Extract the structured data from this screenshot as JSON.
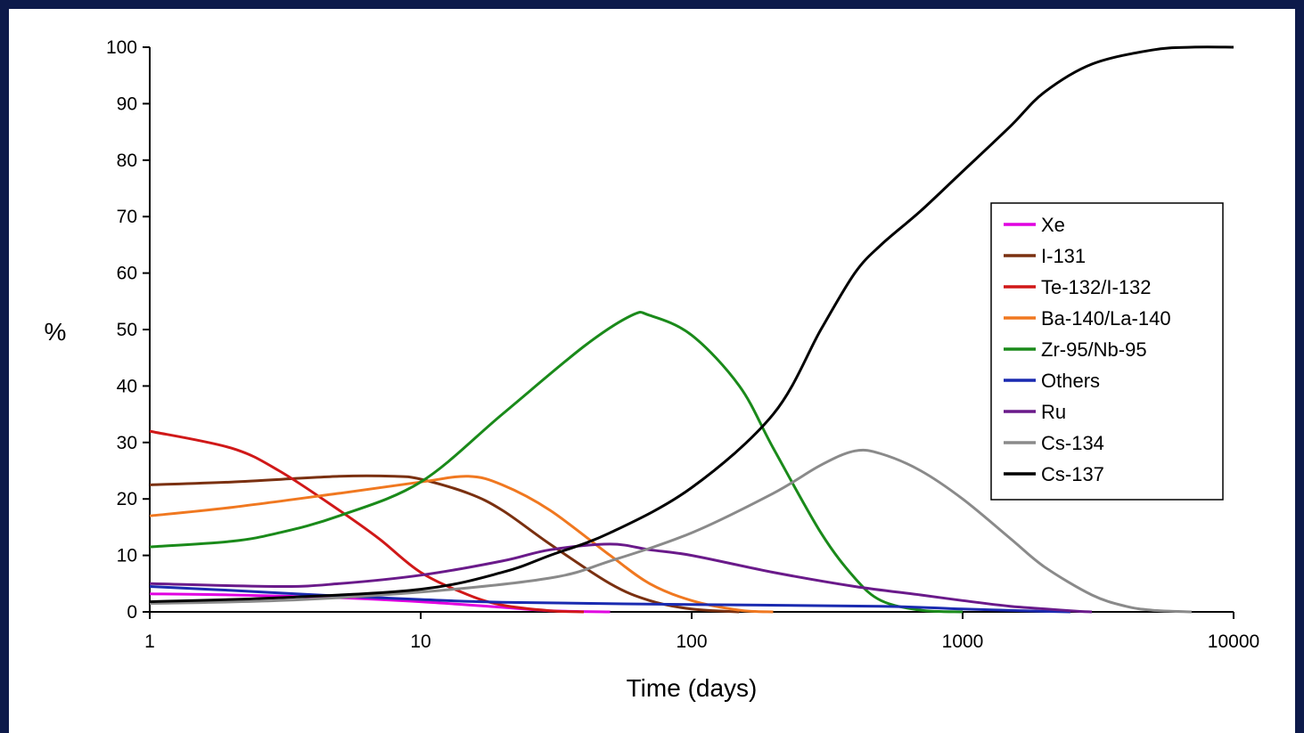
{
  "chart_data": {
    "type": "line",
    "title": "",
    "xlabel": "Time (days)",
    "ylabel": "%",
    "x_scale": "log",
    "xlim": [
      1,
      10000
    ],
    "ylim": [
      0,
      100
    ],
    "x_ticks": [
      1,
      10,
      100,
      1000,
      10000
    ],
    "x_tick_labels": [
      "1",
      "10",
      "100",
      "1000",
      "10000"
    ],
    "y_ticks": [
      0,
      10,
      20,
      30,
      40,
      50,
      60,
      70,
      80,
      90,
      100
    ],
    "y_tick_labels": [
      "0",
      "10",
      "20",
      "30",
      "40",
      "50",
      "60",
      "70",
      "80",
      "90",
      "100"
    ],
    "grid": false,
    "legend_position": "right",
    "series": [
      {
        "name": "Xe",
        "color": "#e000e0",
        "points": [
          [
            1,
            3.2
          ],
          [
            2,
            3.0
          ],
          [
            5,
            2.5
          ],
          [
            10,
            1.8
          ],
          [
            20,
            0.8
          ],
          [
            30,
            0.2
          ],
          [
            50,
            0
          ]
        ]
      },
      {
        "name": "I-131",
        "color": "#7a3010",
        "points": [
          [
            1,
            22.5
          ],
          [
            2,
            23
          ],
          [
            5,
            24
          ],
          [
            8,
            24
          ],
          [
            10,
            23.5
          ],
          [
            15,
            21
          ],
          [
            20,
            18
          ],
          [
            30,
            12
          ],
          [
            50,
            5
          ],
          [
            70,
            2
          ],
          [
            100,
            0.5
          ],
          [
            150,
            0
          ]
        ]
      },
      {
        "name": "Te-132/I-132",
        "color": "#d01818",
        "points": [
          [
            1,
            32
          ],
          [
            2,
            29
          ],
          [
            3,
            25
          ],
          [
            5,
            18
          ],
          [
            7,
            13
          ],
          [
            10,
            7
          ],
          [
            15,
            3
          ],
          [
            20,
            1.2
          ],
          [
            30,
            0.2
          ],
          [
            40,
            0
          ]
        ]
      },
      {
        "name": "Ba-140/La-140",
        "color": "#f07820",
        "points": [
          [
            1,
            17
          ],
          [
            2,
            18.5
          ],
          [
            5,
            21
          ],
          [
            10,
            23
          ],
          [
            15,
            24
          ],
          [
            20,
            22.5
          ],
          [
            30,
            18
          ],
          [
            50,
            10
          ],
          [
            70,
            5
          ],
          [
            100,
            2
          ],
          [
            150,
            0.3
          ],
          [
            200,
            0
          ]
        ]
      },
      {
        "name": "Zr-95/Nb-95",
        "color": "#1a8a1a",
        "points": [
          [
            1,
            11.5
          ],
          [
            2,
            12.5
          ],
          [
            3,
            14
          ],
          [
            5,
            17
          ],
          [
            10,
            23
          ],
          [
            20,
            35
          ],
          [
            40,
            47
          ],
          [
            60,
            52.5
          ],
          [
            70,
            52.5
          ],
          [
            100,
            49
          ],
          [
            150,
            40
          ],
          [
            200,
            29
          ],
          [
            300,
            14
          ],
          [
            400,
            6
          ],
          [
            500,
            2
          ],
          [
            700,
            0.3
          ],
          [
            1000,
            0
          ]
        ]
      },
      {
        "name": "Others",
        "color": "#1a2ab0",
        "points": [
          [
            1,
            4.5
          ],
          [
            2,
            3.8
          ],
          [
            5,
            2.8
          ],
          [
            10,
            2.2
          ],
          [
            20,
            1.7
          ],
          [
            100,
            1.3
          ],
          [
            500,
            1.0
          ],
          [
            1000,
            0.5
          ],
          [
            2000,
            0.1
          ],
          [
            2500,
            0
          ]
        ]
      },
      {
        "name": "Ru",
        "color": "#6a1a8a",
        "points": [
          [
            1,
            5
          ],
          [
            3,
            4.5
          ],
          [
            5,
            5
          ],
          [
            10,
            6.5
          ],
          [
            20,
            9
          ],
          [
            30,
            11
          ],
          [
            50,
            12
          ],
          [
            70,
            11
          ],
          [
            100,
            10
          ],
          [
            200,
            7
          ],
          [
            400,
            4.5
          ],
          [
            700,
            3
          ],
          [
            1000,
            2
          ],
          [
            1500,
            1
          ],
          [
            2500,
            0.2
          ],
          [
            3000,
            0
          ]
        ]
      },
      {
        "name": "Cs-134",
        "color": "#8a8a8a",
        "points": [
          [
            1,
            1.5
          ],
          [
            3,
            2
          ],
          [
            10,
            3.5
          ],
          [
            30,
            6
          ],
          [
            50,
            9
          ],
          [
            100,
            14
          ],
          [
            200,
            21
          ],
          [
            300,
            26
          ],
          [
            400,
            28.5
          ],
          [
            500,
            28
          ],
          [
            700,
            25
          ],
          [
            1000,
            20
          ],
          [
            1500,
            13
          ],
          [
            2000,
            8
          ],
          [
            3000,
            3
          ],
          [
            4000,
            1
          ],
          [
            5000,
            0.3
          ],
          [
            7000,
            0
          ]
        ]
      },
      {
        "name": "Cs-137",
        "color": "#000000",
        "points": [
          [
            1,
            1.8
          ],
          [
            3,
            2.5
          ],
          [
            10,
            4
          ],
          [
            20,
            7
          ],
          [
            30,
            10
          ],
          [
            50,
            14
          ],
          [
            100,
            22
          ],
          [
            200,
            35
          ],
          [
            300,
            50
          ],
          [
            400,
            60
          ],
          [
            500,
            65
          ],
          [
            700,
            71
          ],
          [
            1000,
            78
          ],
          [
            1500,
            86
          ],
          [
            2000,
            92
          ],
          [
            3000,
            97
          ],
          [
            5000,
            99.5
          ],
          [
            7000,
            100
          ],
          [
            10000,
            100
          ]
        ]
      }
    ]
  }
}
